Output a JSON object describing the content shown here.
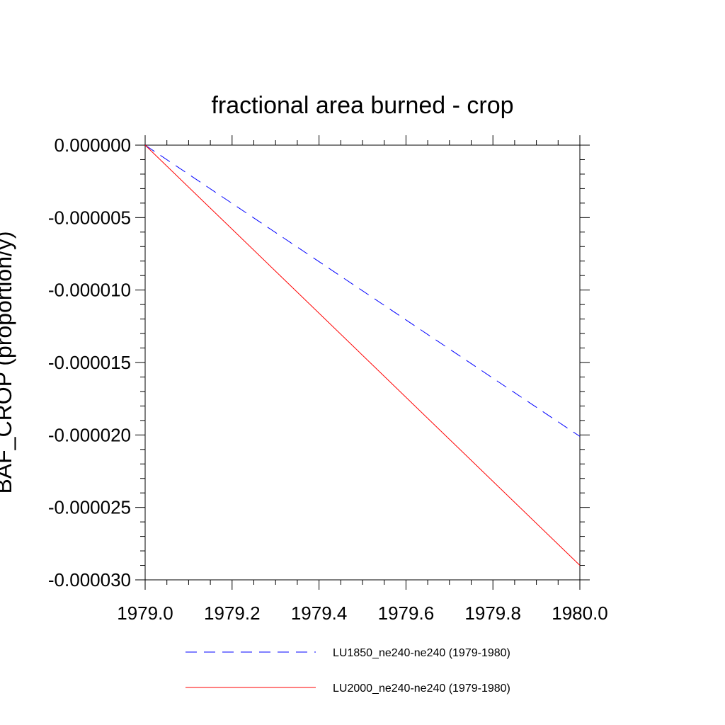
{
  "chart_data": {
    "type": "line",
    "title": "fractional area burned - crop",
    "xlabel": "",
    "ylabel": "BAF_CROP  (proportion/y)",
    "xlim": [
      1979.0,
      1980.0
    ],
    "ylim": [
      -3e-05,
      0.0
    ],
    "x_ticks": [
      "1979.0",
      "1979.2",
      "1979.4",
      "1979.6",
      "1979.8",
      "1980.0"
    ],
    "y_ticks": [
      "0.000000",
      "-0.000005",
      "-0.000010",
      "-0.000015",
      "-0.000020",
      "-0.000025",
      "-0.000030"
    ],
    "grid": false,
    "legend_position": "bottom",
    "series": [
      {
        "name": "LU1850_ne240-ne240 (1979-1980)",
        "color": "#0000ff",
        "style": "dashed",
        "x": [
          1979.0,
          1980.0
        ],
        "y": [
          0.0,
          -2.01e-05
        ]
      },
      {
        "name": "LU2000_ne240-ne240 (1979-1980)",
        "color": "#ff0000",
        "style": "solid",
        "x": [
          1979.0,
          1980.0
        ],
        "y": [
          0.0,
          -2.9e-05
        ]
      }
    ]
  }
}
